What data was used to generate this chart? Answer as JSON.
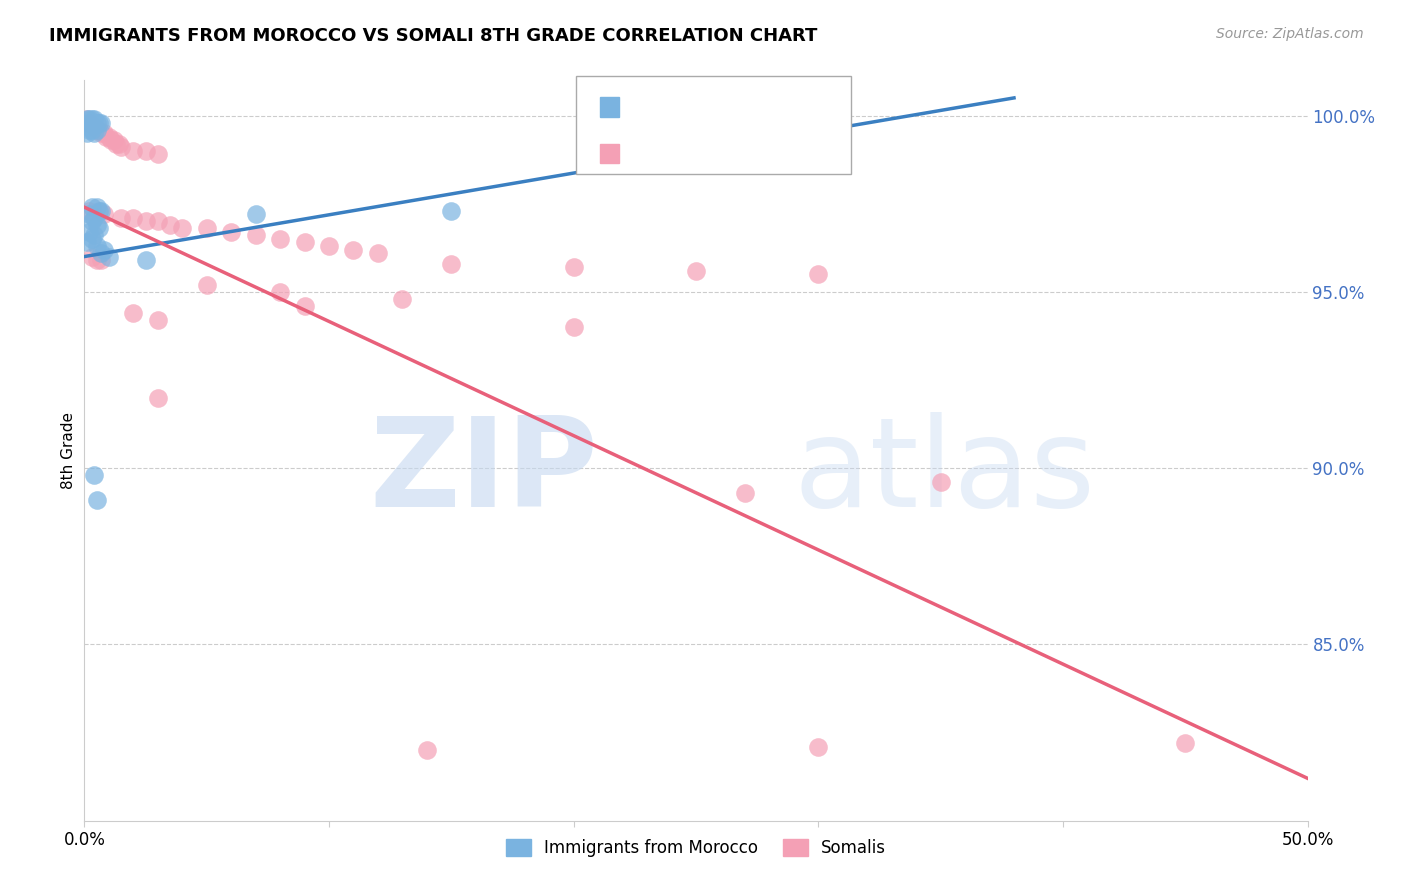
{
  "title": "IMMIGRANTS FROM MOROCCO VS SOMALI 8TH GRADE CORRELATION CHART",
  "source": "Source: ZipAtlas.com",
  "ylabel": "8th Grade",
  "x_min": 0.0,
  "x_max": 0.5,
  "y_min": 0.8,
  "y_max": 1.01,
  "x_ticks": [
    0.0,
    0.1,
    0.2,
    0.3,
    0.4,
    0.5
  ],
  "x_tick_labels": [
    "0.0%",
    "",
    "",
    "",
    "",
    "50.0%"
  ],
  "y_ticks": [
    0.85,
    0.9,
    0.95,
    1.0
  ],
  "y_tick_labels": [
    "85.0%",
    "90.0%",
    "95.0%",
    "100.0%"
  ],
  "grid_color": "#cccccc",
  "watermark_zip": "ZIP",
  "watermark_atlas": "atlas",
  "blue_color": "#7ab3e0",
  "pink_color": "#f4a0b5",
  "blue_line_color": "#3a7fc1",
  "pink_line_color": "#e8607a",
  "blue_scatter": [
    [
      0.001,
      0.999
    ],
    [
      0.002,
      0.999
    ],
    [
      0.003,
      0.999
    ],
    [
      0.004,
      0.999
    ],
    [
      0.005,
      0.998
    ],
    [
      0.006,
      0.998
    ],
    [
      0.007,
      0.998
    ],
    [
      0.003,
      0.997
    ],
    [
      0.004,
      0.997
    ],
    [
      0.002,
      0.996
    ],
    [
      0.005,
      0.996
    ],
    [
      0.003,
      0.996
    ],
    [
      0.001,
      0.995
    ],
    [
      0.004,
      0.995
    ],
    [
      0.003,
      0.974
    ],
    [
      0.005,
      0.974
    ],
    [
      0.006,
      0.973
    ],
    [
      0.007,
      0.973
    ],
    [
      0.002,
      0.972
    ],
    [
      0.004,
      0.971
    ],
    [
      0.003,
      0.97
    ],
    [
      0.005,
      0.969
    ],
    [
      0.006,
      0.968
    ],
    [
      0.002,
      0.967
    ],
    [
      0.004,
      0.966
    ],
    [
      0.003,
      0.965
    ],
    [
      0.001,
      0.964
    ],
    [
      0.005,
      0.963
    ],
    [
      0.008,
      0.962
    ],
    [
      0.007,
      0.961
    ],
    [
      0.01,
      0.96
    ],
    [
      0.025,
      0.959
    ],
    [
      0.07,
      0.972
    ],
    [
      0.004,
      0.898
    ],
    [
      0.15,
      0.973
    ],
    [
      0.005,
      0.891
    ]
  ],
  "pink_scatter": [
    [
      0.001,
      0.999
    ],
    [
      0.002,
      0.998
    ],
    [
      0.003,
      0.997
    ],
    [
      0.004,
      0.997
    ],
    [
      0.005,
      0.996
    ],
    [
      0.006,
      0.996
    ],
    [
      0.007,
      0.995
    ],
    [
      0.008,
      0.995
    ],
    [
      0.009,
      0.994
    ],
    [
      0.01,
      0.994
    ],
    [
      0.011,
      0.993
    ],
    [
      0.012,
      0.993
    ],
    [
      0.013,
      0.992
    ],
    [
      0.014,
      0.992
    ],
    [
      0.015,
      0.991
    ],
    [
      0.02,
      0.99
    ],
    [
      0.025,
      0.99
    ],
    [
      0.03,
      0.989
    ],
    [
      0.002,
      0.973
    ],
    [
      0.008,
      0.972
    ],
    [
      0.015,
      0.971
    ],
    [
      0.02,
      0.971
    ],
    [
      0.025,
      0.97
    ],
    [
      0.03,
      0.97
    ],
    [
      0.035,
      0.969
    ],
    [
      0.04,
      0.968
    ],
    [
      0.05,
      0.968
    ],
    [
      0.06,
      0.967
    ],
    [
      0.07,
      0.966
    ],
    [
      0.08,
      0.965
    ],
    [
      0.09,
      0.964
    ],
    [
      0.1,
      0.963
    ],
    [
      0.11,
      0.962
    ],
    [
      0.12,
      0.961
    ],
    [
      0.003,
      0.96
    ],
    [
      0.005,
      0.959
    ],
    [
      0.007,
      0.959
    ],
    [
      0.15,
      0.958
    ],
    [
      0.2,
      0.957
    ],
    [
      0.25,
      0.956
    ],
    [
      0.3,
      0.955
    ],
    [
      0.05,
      0.952
    ],
    [
      0.08,
      0.95
    ],
    [
      0.13,
      0.948
    ],
    [
      0.09,
      0.946
    ],
    [
      0.02,
      0.944
    ],
    [
      0.03,
      0.942
    ],
    [
      0.2,
      0.94
    ],
    [
      0.03,
      0.92
    ],
    [
      0.35,
      0.896
    ],
    [
      0.27,
      0.893
    ],
    [
      0.3,
      0.821
    ],
    [
      0.45,
      0.822
    ],
    [
      0.14,
      0.82
    ]
  ],
  "blue_line": {
    "x0": 0.0,
    "y0": 0.96,
    "x1": 0.38,
    "y1": 1.005
  },
  "pink_line": {
    "x0": 0.0,
    "y0": 0.974,
    "x1": 0.5,
    "y1": 0.812
  }
}
